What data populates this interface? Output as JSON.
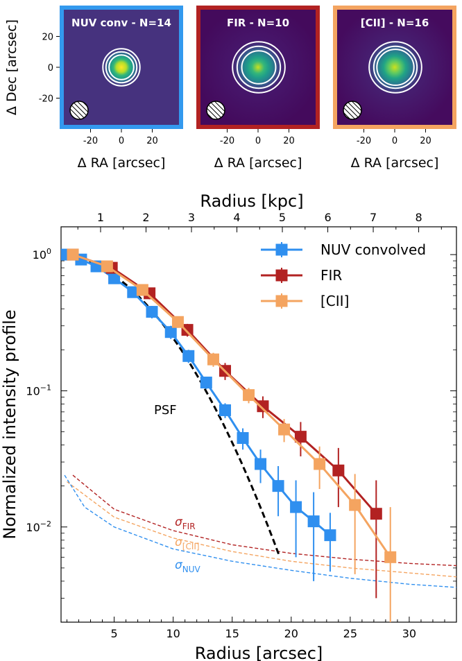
{
  "chart_data": [
    {
      "type": "heatmap",
      "title": "NUV conv - N=14",
      "frame_color": "#3399ee",
      "xlabel": "Δ RA [arcsec]",
      "ylabel": "Δ Dec [arcsec]",
      "xticks": [
        "-20",
        "0",
        "20"
      ],
      "yticks": [
        "20",
        "0",
        "-20"
      ],
      "xlim": [
        -40,
        40
      ],
      "ylim": [
        -40,
        40
      ],
      "source_peak": [
        0,
        0
      ],
      "contour_radii": [
        8,
        10,
        12
      ],
      "beam_symbol": "hatched-circle"
    },
    {
      "type": "heatmap",
      "title": "FIR - N=10",
      "frame_color": "#b22222",
      "xlabel": "Δ RA [arcsec]",
      "xticks": [
        "-20",
        "0",
        "20"
      ],
      "xlim": [
        -40,
        40
      ],
      "ylim": [
        -40,
        40
      ],
      "source_peak": [
        0,
        0
      ],
      "contour_radii": [
        11,
        14,
        17
      ],
      "beam_symbol": "hatched-circle"
    },
    {
      "type": "heatmap",
      "title": "[CII] - N=16",
      "frame_color": "#f4a460",
      "xlabel": "Δ RA [arcsec]",
      "xticks": [
        "-20",
        "0",
        "20"
      ],
      "xlim": [
        -40,
        40
      ],
      "ylim": [
        -40,
        40
      ],
      "source_peak": [
        0,
        0
      ],
      "contour_radii": [
        12,
        14,
        17
      ],
      "beam_symbol": "hatched-circle"
    },
    {
      "type": "line",
      "xlabel": "Radius [arcsec]",
      "ylabel": "Normalized intensity profile",
      "x2label": "Radius [kpc]",
      "xlim": [
        0.5,
        34
      ],
      "ylim": [
        0.002,
        1.6
      ],
      "yscale": "log",
      "xticks": [
        "5",
        "10",
        "15",
        "20",
        "25",
        "30"
      ],
      "yticks": [
        {
          "base": "10",
          "exp": "0",
          "value": 1
        },
        {
          "base": "10",
          "exp": "−1",
          "value": 0.1
        },
        {
          "base": "10",
          "exp": "−2",
          "value": 0.01
        }
      ],
      "x2ticks": [
        "1",
        "2",
        "3",
        "4",
        "5",
        "6",
        "7",
        "8"
      ],
      "x2_arcsec_per_kpc": 3.85,
      "legend_position": "top-right",
      "series": [
        {
          "name": "NUV convolved",
          "color": "#2f8fef",
          "x": [
            0.8,
            2.2,
            3.5,
            5.0,
            6.6,
            8.2,
            9.8,
            11.3,
            12.8,
            14.4,
            15.9,
            17.4,
            18.9,
            20.4,
            21.9,
            23.3
          ],
          "y": [
            1.0,
            0.92,
            0.82,
            0.67,
            0.53,
            0.38,
            0.27,
            0.18,
            0.115,
            0.072,
            0.045,
            0.029,
            0.02,
            0.014,
            0.011,
            0.0087
          ],
          "err": [
            0.02,
            0.03,
            0.04,
            0.05,
            0.04,
            0.04,
            0.03,
            0.02,
            0.012,
            0.009,
            0.008,
            0.008,
            0.008,
            0.008,
            0.007,
            0.004
          ]
        },
        {
          "name": "FIR",
          "color": "#b22222",
          "x": [
            1.5,
            4.8,
            8.0,
            11.2,
            14.4,
            17.6,
            20.8,
            24.0,
            27.2
          ],
          "y": [
            1.0,
            0.8,
            0.52,
            0.28,
            0.14,
            0.077,
            0.046,
            0.026,
            0.0125
          ],
          "err": [
            0.03,
            0.05,
            0.05,
            0.03,
            0.02,
            0.014,
            0.013,
            0.012,
            0.0095
          ]
        },
        {
          "name": "[CII]",
          "color": "#f4a460",
          "x": [
            1.5,
            4.4,
            7.4,
            10.4,
            13.4,
            16.4,
            19.4,
            22.4,
            25.4,
            28.4
          ],
          "y": [
            1.0,
            0.82,
            0.55,
            0.32,
            0.17,
            0.093,
            0.052,
            0.029,
            0.0145,
            0.006
          ],
          "err": [
            0.02,
            0.04,
            0.04,
            0.03,
            0.02,
            0.012,
            0.01,
            0.01,
            0.01,
            0.008
          ]
        }
      ],
      "psf": {
        "label": "PSF",
        "color": "#000000",
        "sigma_arcsec": 5.95
      },
      "noise_curves": [
        {
          "label": "σ",
          "sub": "FIR",
          "color": "#b22222",
          "x": [
            1.5,
            5,
            10,
            15,
            20,
            25,
            30,
            34
          ],
          "y": [
            0.024,
            0.0135,
            0.0094,
            0.0074,
            0.0064,
            0.0058,
            0.0054,
            0.0052
          ]
        },
        {
          "label": "σ",
          "sub": "[CII]",
          "color": "#f4a460",
          "x": [
            1.0,
            5,
            10,
            15,
            20,
            25,
            30,
            34
          ],
          "y": [
            0.0215,
            0.0118,
            0.0083,
            0.0066,
            0.0056,
            0.005,
            0.0046,
            0.0043
          ]
        },
        {
          "label": "σ",
          "sub": "NUV",
          "color": "#2f8fef",
          "x": [
            0.8,
            2.5,
            5,
            10,
            15,
            20,
            25,
            30,
            34
          ],
          "y": [
            0.024,
            0.014,
            0.01,
            0.0069,
            0.0056,
            0.0048,
            0.0042,
            0.0038,
            0.0036
          ]
        }
      ]
    }
  ]
}
